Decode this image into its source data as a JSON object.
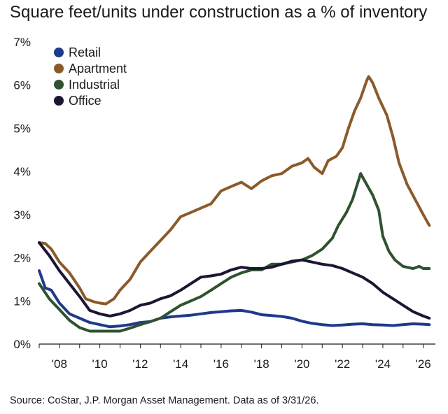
{
  "title": "Square feet/units under construction as a % of inventory",
  "source": "Source: CoStar, J.P. Morgan Asset Management. Data as of 3/31/26.",
  "chart_data": {
    "type": "line",
    "title": "Square feet/units under construction as a % of inventory",
    "xlabel": "",
    "ylabel": "",
    "xlim": [
      2007,
      2026.6
    ],
    "ylim": [
      0,
      7
    ],
    "x_ticks": [
      2008,
      2010,
      2012,
      2014,
      2016,
      2018,
      2020,
      2022,
      2024,
      2026
    ],
    "x_tick_labels": [
      "'08",
      "'10",
      "'12",
      "'14",
      "'16",
      "'18",
      "'20",
      "'22",
      "'24",
      "'26"
    ],
    "y_ticks": [
      0,
      1,
      2,
      3,
      4,
      5,
      6,
      7
    ],
    "y_tick_labels": [
      "0%",
      "1%",
      "2%",
      "3%",
      "4%",
      "5%",
      "6%",
      "7%"
    ],
    "grid": false,
    "legend_position": "top-left",
    "series": [
      {
        "name": "Retail",
        "color": "#1f3a8a",
        "points": [
          [
            2007.0,
            1.7
          ],
          [
            2007.3,
            1.3
          ],
          [
            2007.6,
            1.25
          ],
          [
            2008.0,
            0.95
          ],
          [
            2008.5,
            0.7
          ],
          [
            2009.0,
            0.6
          ],
          [
            2009.5,
            0.5
          ],
          [
            2010.0,
            0.45
          ],
          [
            2010.5,
            0.4
          ],
          [
            2011.0,
            0.42
          ],
          [
            2011.5,
            0.45
          ],
          [
            2012.0,
            0.5
          ],
          [
            2012.5,
            0.52
          ],
          [
            2013.0,
            0.6
          ],
          [
            2013.5,
            0.63
          ],
          [
            2014.0,
            0.65
          ],
          [
            2014.5,
            0.67
          ],
          [
            2015.0,
            0.7
          ],
          [
            2015.5,
            0.73
          ],
          [
            2016.0,
            0.75
          ],
          [
            2016.5,
            0.77
          ],
          [
            2017.0,
            0.78
          ],
          [
            2017.5,
            0.74
          ],
          [
            2018.0,
            0.68
          ],
          [
            2018.5,
            0.66
          ],
          [
            2019.0,
            0.64
          ],
          [
            2019.5,
            0.6
          ],
          [
            2020.0,
            0.53
          ],
          [
            2020.5,
            0.48
          ],
          [
            2021.0,
            0.45
          ],
          [
            2021.5,
            0.43
          ],
          [
            2022.0,
            0.44
          ],
          [
            2022.5,
            0.46
          ],
          [
            2023.0,
            0.47
          ],
          [
            2023.5,
            0.45
          ],
          [
            2024.0,
            0.44
          ],
          [
            2024.5,
            0.43
          ],
          [
            2025.0,
            0.45
          ],
          [
            2025.5,
            0.47
          ],
          [
            2026.0,
            0.46
          ],
          [
            2026.3,
            0.45
          ]
        ]
      },
      {
        "name": "Apartment",
        "color": "#8b5a2b",
        "points": [
          [
            2007.0,
            2.35
          ],
          [
            2007.3,
            2.33
          ],
          [
            2007.6,
            2.2
          ],
          [
            2008.0,
            1.9
          ],
          [
            2008.5,
            1.65
          ],
          [
            2009.0,
            1.3
          ],
          [
            2009.3,
            1.05
          ],
          [
            2009.7,
            0.98
          ],
          [
            2010.0,
            0.95
          ],
          [
            2010.3,
            0.93
          ],
          [
            2010.7,
            1.05
          ],
          [
            2011.0,
            1.25
          ],
          [
            2011.5,
            1.5
          ],
          [
            2012.0,
            1.9
          ],
          [
            2012.5,
            2.15
          ],
          [
            2013.0,
            2.4
          ],
          [
            2013.5,
            2.65
          ],
          [
            2014.0,
            2.95
          ],
          [
            2014.5,
            3.05
          ],
          [
            2015.0,
            3.15
          ],
          [
            2015.5,
            3.25
          ],
          [
            2016.0,
            3.55
          ],
          [
            2016.5,
            3.65
          ],
          [
            2017.0,
            3.75
          ],
          [
            2017.5,
            3.6
          ],
          [
            2018.0,
            3.78
          ],
          [
            2018.5,
            3.9
          ],
          [
            2019.0,
            3.95
          ],
          [
            2019.5,
            4.12
          ],
          [
            2020.0,
            4.2
          ],
          [
            2020.3,
            4.3
          ],
          [
            2020.6,
            4.1
          ],
          [
            2021.0,
            3.95
          ],
          [
            2021.3,
            4.25
          ],
          [
            2021.7,
            4.35
          ],
          [
            2022.0,
            4.55
          ],
          [
            2022.3,
            5.0
          ],
          [
            2022.6,
            5.4
          ],
          [
            2022.9,
            5.7
          ],
          [
            2023.2,
            6.1
          ],
          [
            2023.3,
            6.2
          ],
          [
            2023.5,
            6.05
          ],
          [
            2023.8,
            5.7
          ],
          [
            2024.2,
            5.3
          ],
          [
            2024.5,
            4.8
          ],
          [
            2024.8,
            4.2
          ],
          [
            2025.2,
            3.7
          ],
          [
            2025.6,
            3.35
          ],
          [
            2026.0,
            3.0
          ],
          [
            2026.3,
            2.75
          ]
        ]
      },
      {
        "name": "Industrial",
        "color": "#2f5231",
        "points": [
          [
            2007.0,
            1.4
          ],
          [
            2007.5,
            1.05
          ],
          [
            2008.0,
            0.8
          ],
          [
            2008.5,
            0.55
          ],
          [
            2009.0,
            0.38
          ],
          [
            2009.5,
            0.3
          ],
          [
            2010.0,
            0.3
          ],
          [
            2010.5,
            0.3
          ],
          [
            2011.0,
            0.3
          ],
          [
            2011.5,
            0.37
          ],
          [
            2012.0,
            0.45
          ],
          [
            2012.5,
            0.52
          ],
          [
            2013.0,
            0.6
          ],
          [
            2013.5,
            0.75
          ],
          [
            2014.0,
            0.9
          ],
          [
            2014.5,
            1.0
          ],
          [
            2015.0,
            1.1
          ],
          [
            2015.5,
            1.25
          ],
          [
            2016.0,
            1.4
          ],
          [
            2016.5,
            1.55
          ],
          [
            2017.0,
            1.65
          ],
          [
            2017.5,
            1.72
          ],
          [
            2018.0,
            1.72
          ],
          [
            2018.5,
            1.85
          ],
          [
            2019.0,
            1.85
          ],
          [
            2019.5,
            1.9
          ],
          [
            2020.0,
            1.95
          ],
          [
            2020.5,
            2.05
          ],
          [
            2021.0,
            2.2
          ],
          [
            2021.5,
            2.45
          ],
          [
            2021.8,
            2.75
          ],
          [
            2022.2,
            3.05
          ],
          [
            2022.5,
            3.35
          ],
          [
            2022.7,
            3.65
          ],
          [
            2022.9,
            3.95
          ],
          [
            2023.2,
            3.7
          ],
          [
            2023.5,
            3.45
          ],
          [
            2023.8,
            3.1
          ],
          [
            2024.0,
            2.5
          ],
          [
            2024.3,
            2.15
          ],
          [
            2024.6,
            1.95
          ],
          [
            2025.0,
            1.8
          ],
          [
            2025.5,
            1.75
          ],
          [
            2025.8,
            1.8
          ],
          [
            2026.0,
            1.75
          ],
          [
            2026.3,
            1.75
          ]
        ]
      },
      {
        "name": "Office",
        "color": "#1c1633",
        "points": [
          [
            2007.0,
            2.35
          ],
          [
            2007.5,
            2.05
          ],
          [
            2008.0,
            1.7
          ],
          [
            2008.5,
            1.4
          ],
          [
            2009.0,
            1.1
          ],
          [
            2009.5,
            0.78
          ],
          [
            2010.0,
            0.7
          ],
          [
            2010.5,
            0.65
          ],
          [
            2011.0,
            0.7
          ],
          [
            2011.5,
            0.78
          ],
          [
            2012.0,
            0.9
          ],
          [
            2012.5,
            0.95
          ],
          [
            2013.0,
            1.05
          ],
          [
            2013.5,
            1.12
          ],
          [
            2014.0,
            1.25
          ],
          [
            2014.5,
            1.4
          ],
          [
            2015.0,
            1.55
          ],
          [
            2015.5,
            1.58
          ],
          [
            2016.0,
            1.62
          ],
          [
            2016.5,
            1.72
          ],
          [
            2017.0,
            1.78
          ],
          [
            2017.5,
            1.75
          ],
          [
            2018.0,
            1.75
          ],
          [
            2018.5,
            1.78
          ],
          [
            2019.0,
            1.85
          ],
          [
            2019.5,
            1.92
          ],
          [
            2020.0,
            1.95
          ],
          [
            2020.5,
            1.9
          ],
          [
            2021.0,
            1.85
          ],
          [
            2021.5,
            1.82
          ],
          [
            2022.0,
            1.75
          ],
          [
            2022.5,
            1.65
          ],
          [
            2023.0,
            1.55
          ],
          [
            2023.5,
            1.4
          ],
          [
            2024.0,
            1.2
          ],
          [
            2024.5,
            1.05
          ],
          [
            2025.0,
            0.9
          ],
          [
            2025.5,
            0.75
          ],
          [
            2026.0,
            0.65
          ],
          [
            2026.3,
            0.6
          ]
        ]
      }
    ]
  }
}
